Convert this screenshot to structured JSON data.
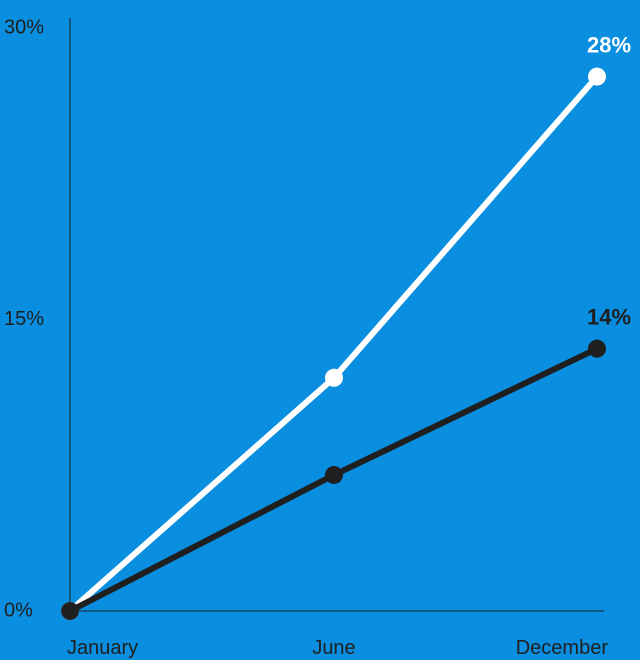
{
  "chart_data": {
    "type": "line",
    "categories": [
      "January",
      "June",
      "December"
    ],
    "series": [
      {
        "values": [
          0,
          12,
          27.5
        ],
        "color": "#ffffff",
        "end_label": "28%"
      },
      {
        "values": [
          0,
          7,
          13.5
        ],
        "color": "#1f1f1f",
        "end_label": "14%"
      }
    ],
    "ylim": [
      0,
      30
    ],
    "yticks": [
      {
        "value": 0,
        "label": "0%"
      },
      {
        "value": 15,
        "label": "15%"
      },
      {
        "value": 30,
        "label": "30%"
      }
    ],
    "grid": false,
    "title": "",
    "xlabel": "",
    "ylabel": ""
  },
  "colors": {
    "background": "#0a8fe0",
    "axis": "#1f1f1f"
  }
}
